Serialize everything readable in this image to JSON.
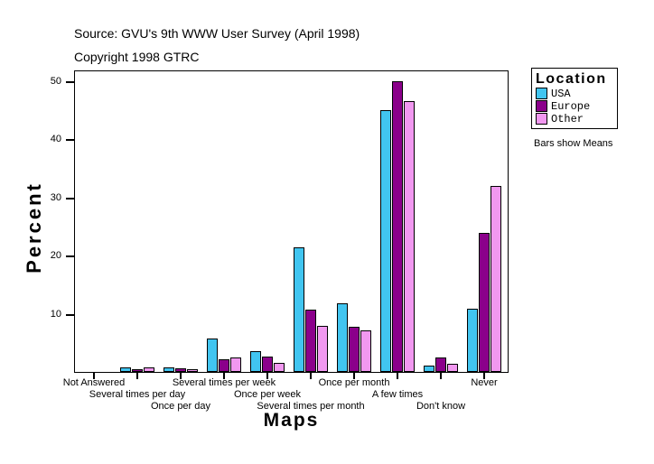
{
  "header": {
    "source": "Source: GVU's 9th WWW User Survey (April 1998)",
    "copyright": "Copyright 1998 GTRC"
  },
  "chart_data": {
    "type": "bar",
    "title": "",
    "xlabel": "Maps",
    "ylabel": "Percent",
    "ylim": [
      0,
      52
    ],
    "yticks": [
      10,
      20,
      30,
      40,
      50
    ],
    "grid": false,
    "legend_position": "right",
    "categories": [
      "Not Answered",
      "Several times per day",
      "Once per day",
      "Several times per week",
      "Once per week",
      "Several times per month",
      "Once per month",
      "A few times",
      "Don't know",
      "Never"
    ],
    "series": [
      {
        "name": "USA",
        "color": "#41C5F0",
        "values": [
          0,
          0.7,
          0.8,
          5.7,
          3.5,
          21.4,
          11.8,
          45.0,
          1.1,
          10.9
        ]
      },
      {
        "name": "Europe",
        "color": "#8B008B",
        "values": [
          0,
          0.5,
          0.6,
          2.1,
          2.6,
          10.7,
          7.7,
          50.0,
          2.5,
          23.9
        ]
      },
      {
        "name": "Other",
        "color": "#F198F0",
        "values": [
          0,
          0.8,
          0.4,
          2.5,
          1.6,
          7.9,
          7.1,
          46.6,
          1.4,
          32.0
        ]
      }
    ]
  },
  "legend": {
    "title": "Location",
    "note": "Bars show Means"
  }
}
